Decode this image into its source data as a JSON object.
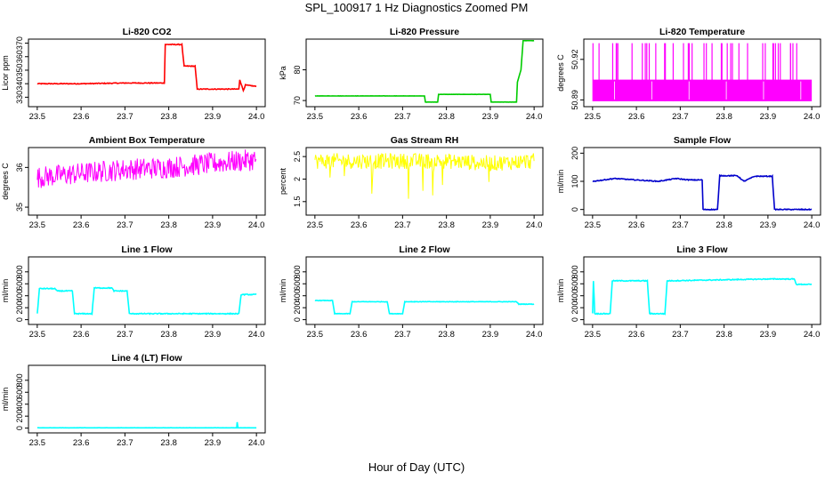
{
  "figure": {
    "title": "SPL_100917  1 Hz Diagnostics Zoomed PM",
    "xlabel": "Hour of Day (UTC)"
  },
  "chart_data": [
    {
      "type": "line",
      "title": "Li-820 CO2",
      "ylabel": "Licor ppm",
      "color": "#ff0000",
      "xlim": [
        23.48,
        24.02
      ],
      "ylim": [
        323,
        373
      ],
      "xticks": [
        "23.5",
        "23.6",
        "23.7",
        "23.8",
        "23.9",
        "24.0"
      ],
      "yticks": [
        330,
        340,
        350,
        360,
        370
      ],
      "x": [
        23.5,
        23.6,
        23.7,
        23.79,
        23.792,
        23.83,
        23.835,
        23.86,
        23.865,
        23.96,
        23.962,
        23.97,
        23.975,
        24.0
      ],
      "y": [
        340,
        340,
        340.5,
        340.5,
        369,
        369,
        353,
        353,
        336,
        336,
        343,
        335,
        339,
        338
      ]
    },
    {
      "type": "line",
      "title": "Li-820 Pressure",
      "ylabel": "kPa",
      "color": "#00cc00",
      "xlim": [
        23.48,
        24.02
      ],
      "ylim": [
        68,
        90
      ],
      "xticks": [
        "23.5",
        "23.6",
        "23.7",
        "23.8",
        "23.9",
        "24.0"
      ],
      "yticks": [
        70,
        80
      ],
      "x": [
        23.5,
        23.75,
        23.752,
        23.78,
        23.782,
        23.9,
        23.902,
        23.96,
        23.962,
        23.97,
        23.975,
        24.0
      ],
      "y": [
        71.5,
        71.5,
        69.5,
        69.5,
        72,
        72,
        69.5,
        69.5,
        76,
        80,
        89.5,
        89.5
      ]
    },
    {
      "type": "line",
      "title": "Li-820 Temperature",
      "ylabel": "degrees C",
      "color": "#ff00ff",
      "xlim": [
        23.48,
        24.02
      ],
      "ylim": [
        50.885,
        50.935
      ],
      "xticks": [
        "23.5",
        "23.6",
        "23.7",
        "23.8",
        "23.9",
        "24.0"
      ],
      "yticks": [
        50.89,
        50.92
      ],
      "x": [
        23.5,
        24.0
      ],
      "y": [
        50.905,
        50.905
      ]
    },
    {
      "type": "line",
      "title": "Ambient Box Temperature",
      "ylabel": "degrees C",
      "color": "#ff00ff",
      "xlim": [
        23.48,
        24.02
      ],
      "ylim": [
        34.8,
        36.5
      ],
      "xticks": [
        "23.5",
        "23.6",
        "23.7",
        "23.8",
        "23.9",
        "24.0"
      ],
      "yticks": [
        35.0,
        36.0
      ],
      "x": [
        23.5,
        23.6,
        23.7,
        23.8,
        23.9,
        24.0
      ],
      "y": [
        35.75,
        35.85,
        35.95,
        36.0,
        36.1,
        36.2
      ]
    },
    {
      "type": "line",
      "title": "Gas Stream RH",
      "ylabel": "percent",
      "color": "#ffff00",
      "xlim": [
        23.48,
        24.02
      ],
      "ylim": [
        1.2,
        2.7
      ],
      "xticks": [
        "23.5",
        "23.6",
        "23.7",
        "23.8",
        "23.9",
        "24.0"
      ],
      "yticks": [
        1.5,
        2.0,
        2.5
      ],
      "x": [
        23.5,
        23.6,
        23.7,
        23.8,
        23.9,
        24.0
      ],
      "y": [
        2.4,
        2.4,
        2.4,
        2.4,
        2.35,
        2.4
      ]
    },
    {
      "type": "line",
      "title": "Sample Flow",
      "ylabel": "ml/min",
      "color": "#0000cc",
      "xlim": [
        23.48,
        24.02
      ],
      "ylim": [
        -20,
        220
      ],
      "xticks": [
        "23.5",
        "23.6",
        "23.7",
        "23.8",
        "23.9",
        "24.0"
      ],
      "yticks": [
        0,
        100,
        200
      ],
      "x": [
        23.5,
        23.55,
        23.6,
        23.65,
        23.69,
        23.72,
        23.75,
        23.752,
        23.785,
        23.79,
        23.83,
        23.845,
        23.87,
        23.91,
        23.915,
        24.0
      ],
      "y": [
        100,
        110,
        105,
        100,
        110,
        105,
        105,
        0,
        0,
        120,
        120,
        100,
        118,
        118,
        0,
        0
      ]
    },
    {
      "type": "line",
      "title": "Line 1 Flow",
      "ylabel": "ml/min",
      "color": "#00ffff",
      "xlim": [
        23.48,
        24.02
      ],
      "ylim": [
        -80,
        1050
      ],
      "xticks": [
        "23.5",
        "23.6",
        "23.7",
        "23.8",
        "23.9",
        "24.0"
      ],
      "yticks": [
        0,
        200,
        400,
        600,
        800
      ],
      "x": [
        23.5,
        23.505,
        23.54,
        23.545,
        23.58,
        23.585,
        23.625,
        23.63,
        23.67,
        23.675,
        23.705,
        23.71,
        23.96,
        23.965,
        24.0
      ],
      "y": [
        100,
        520,
        520,
        480,
        480,
        100,
        100,
        530,
        530,
        480,
        480,
        100,
        100,
        420,
        420
      ]
    },
    {
      "type": "line",
      "title": "Line 2 Flow",
      "ylabel": "ml/min",
      "color": "#00ffff",
      "xlim": [
        23.48,
        24.02
      ],
      "ylim": [
        -80,
        1050
      ],
      "xticks": [
        "23.5",
        "23.6",
        "23.7",
        "23.8",
        "23.9",
        "24.0"
      ],
      "yticks": [
        0,
        200,
        400,
        600,
        800
      ],
      "x": [
        23.5,
        23.54,
        23.545,
        23.58,
        23.585,
        23.665,
        23.67,
        23.7,
        23.705,
        23.96,
        23.965,
        24.0
      ],
      "y": [
        320,
        320,
        100,
        100,
        300,
        300,
        100,
        100,
        300,
        300,
        260,
        260
      ]
    },
    {
      "type": "line",
      "title": "Line 3 Flow",
      "ylabel": "ml/min",
      "color": "#00ffff",
      "xlim": [
        23.48,
        24.02
      ],
      "ylim": [
        -80,
        1050
      ],
      "xticks": [
        "23.5",
        "23.6",
        "23.7",
        "23.8",
        "23.9",
        "24.0"
      ],
      "yticks": [
        0,
        200,
        400,
        600,
        800
      ],
      "x": [
        23.5,
        23.502,
        23.505,
        23.54,
        23.545,
        23.625,
        23.63,
        23.665,
        23.67,
        23.9,
        23.96,
        23.965,
        24.0
      ],
      "y": [
        100,
        650,
        100,
        100,
        650,
        650,
        100,
        100,
        650,
        680,
        680,
        590,
        590
      ]
    },
    {
      "type": "line",
      "title": "Line 4 (LT) Flow",
      "ylabel": "ml/min",
      "color": "#00ffff",
      "xlim": [
        23.48,
        24.02
      ],
      "ylim": [
        -80,
        1050
      ],
      "xticks": [
        "23.5",
        "23.6",
        "23.7",
        "23.8",
        "23.9",
        "24.0"
      ],
      "yticks": [
        0,
        200,
        400,
        600,
        800
      ],
      "x": [
        23.5,
        23.955,
        23.956,
        23.958,
        23.96,
        24.0
      ],
      "y": [
        5,
        5,
        100,
        5,
        5,
        5
      ]
    }
  ]
}
